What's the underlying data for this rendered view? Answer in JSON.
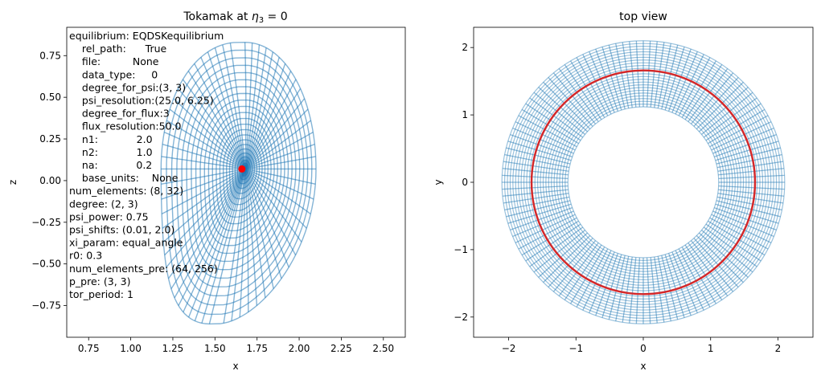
{
  "chart_data": [
    {
      "type": "line",
      "panel": "left",
      "title_prefix": "Tokamak at ",
      "title_math_symbol": "η",
      "title_math_sub": "3",
      "title_suffix": " = 0",
      "xlabel": "x",
      "ylabel": "z",
      "xlim": [
        0.62,
        2.63
      ],
      "ylim": [
        -0.94,
        0.92
      ],
      "xticks": [
        "0.75",
        "1.00",
        "1.25",
        "1.50",
        "1.75",
        "2.00",
        "2.25",
        "2.50"
      ],
      "xtick_values": [
        0.75,
        1.0,
        1.25,
        1.5,
        1.75,
        2.0,
        2.25,
        2.5
      ],
      "yticks": [
        "0.75",
        "0.50",
        "0.25",
        "0.00",
        "−0.25",
        "−0.50",
        "−0.75"
      ],
      "ytick_values": [
        0.75,
        0.5,
        0.25,
        0.0,
        -0.25,
        -0.5,
        -0.75
      ],
      "magnetic_axis": {
        "x": 1.66,
        "z": 0.07
      },
      "boundary": {
        "R_in": 1.18,
        "R_out": 2.1,
        "z_top": 0.83,
        "z_bottom": -0.86,
        "x_top": 1.68,
        "x_bottom": 1.49
      },
      "num_radial": 8,
      "num_poloidal": 32,
      "mesh_color": "#1f77b4",
      "axis_color": "#ff0000",
      "params_text": [
        "equilibrium: EQDSKequilibrium",
        "    rel_path:      True",
        "    file:          None",
        "    data_type:     0",
        "    degree_for_psi:(3, 3)",
        "    psi_resolution:(25.0, 6.25)",
        "    degree_for_flux:3",
        "    flux_resolution:50.0",
        "    n1:            2.0",
        "    n2:            1.0",
        "    na:            0.2",
        "    base_units:    None",
        "num_elements: (8, 32)",
        "degree: (2, 3)",
        "psi_power: 0.75",
        "psi_shifts: (0.01, 2.0)",
        "xi_param: equal_angle",
        "r0: 0.3",
        "num_elements_pre: (64, 256)",
        "p_pre: (3, 3)",
        "tor_period: 1"
      ]
    },
    {
      "type": "line",
      "panel": "right",
      "title": "top view",
      "xlabel": "x",
      "ylabel": "y",
      "xlim": [
        -2.52,
        2.52
      ],
      "ylim": [
        -2.3,
        2.3
      ],
      "xticks": [
        "−2",
        "−1",
        "0",
        "1",
        "2"
      ],
      "xtick_values": [
        -2,
        -1,
        0,
        1,
        2
      ],
      "yticks": [
        "2",
        "1",
        "0",
        "−1",
        "−2"
      ],
      "ytick_values": [
        2,
        1,
        0,
        -1,
        -2
      ],
      "inner_radius": 1.12,
      "outer_radius": 2.1,
      "axis_radius": 1.66,
      "num_rings": 8,
      "num_spokes": 128,
      "mesh_color": "#1f77b4",
      "axis_circle_color": "#d62728"
    }
  ]
}
